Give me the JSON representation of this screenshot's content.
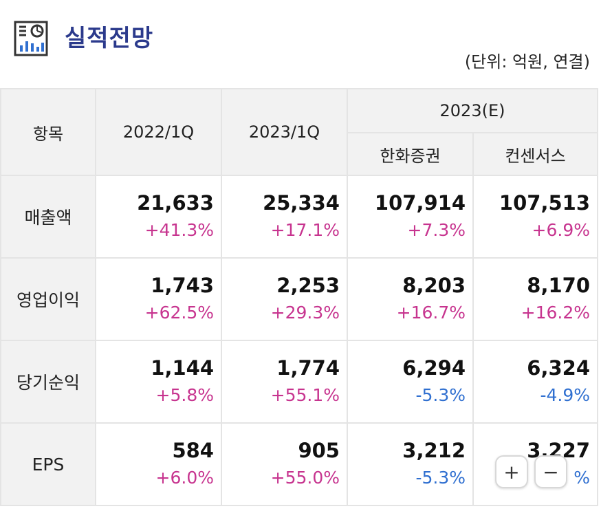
{
  "header": {
    "title": "실적전망",
    "unit": "(단위: 억원, 연결)"
  },
  "table": {
    "head": {
      "item": "항목",
      "c1": "2022/1Q",
      "c2": "2023/1Q",
      "group": "2023(E)",
      "sub1": "한화증권",
      "sub2": "컨센서스"
    },
    "rows": [
      {
        "label": "매출액",
        "cells": [
          {
            "v": "21,633",
            "c": "+41.3%"
          },
          {
            "v": "25,334",
            "c": "+17.1%"
          },
          {
            "v": "107,914",
            "c": "+7.3%"
          },
          {
            "v": "107,513",
            "c": "+6.9%"
          }
        ]
      },
      {
        "label": "영업이익",
        "cells": [
          {
            "v": "1,743",
            "c": "+62.5%"
          },
          {
            "v": "2,253",
            "c": "+29.3%"
          },
          {
            "v": "8,203",
            "c": "+16.7%"
          },
          {
            "v": "8,170",
            "c": "+16.2%"
          }
        ]
      },
      {
        "label": "당기순익",
        "cells": [
          {
            "v": "1,144",
            "c": "+5.8%"
          },
          {
            "v": "1,774",
            "c": "+55.1%"
          },
          {
            "v": "6,294",
            "c": "-5.3%"
          },
          {
            "v": "6,324",
            "c": "-4.9%"
          }
        ]
      },
      {
        "label": "EPS",
        "cells": [
          {
            "v": "584",
            "c": "+6.0%"
          },
          {
            "v": "905",
            "c": "+55.0%"
          },
          {
            "v": "3,212",
            "c": "-5.3%"
          },
          {
            "v": "3,227",
            "c": "%"
          }
        ]
      }
    ]
  },
  "zoom": {
    "in": "+",
    "out": "−"
  },
  "colors": {
    "title": "#2b3a8c",
    "positive": "#c7348f",
    "negative": "#2f6fd0",
    "header_bg": "#f2f2f2"
  },
  "icons": {
    "title_icon": "report-chart-icon"
  }
}
